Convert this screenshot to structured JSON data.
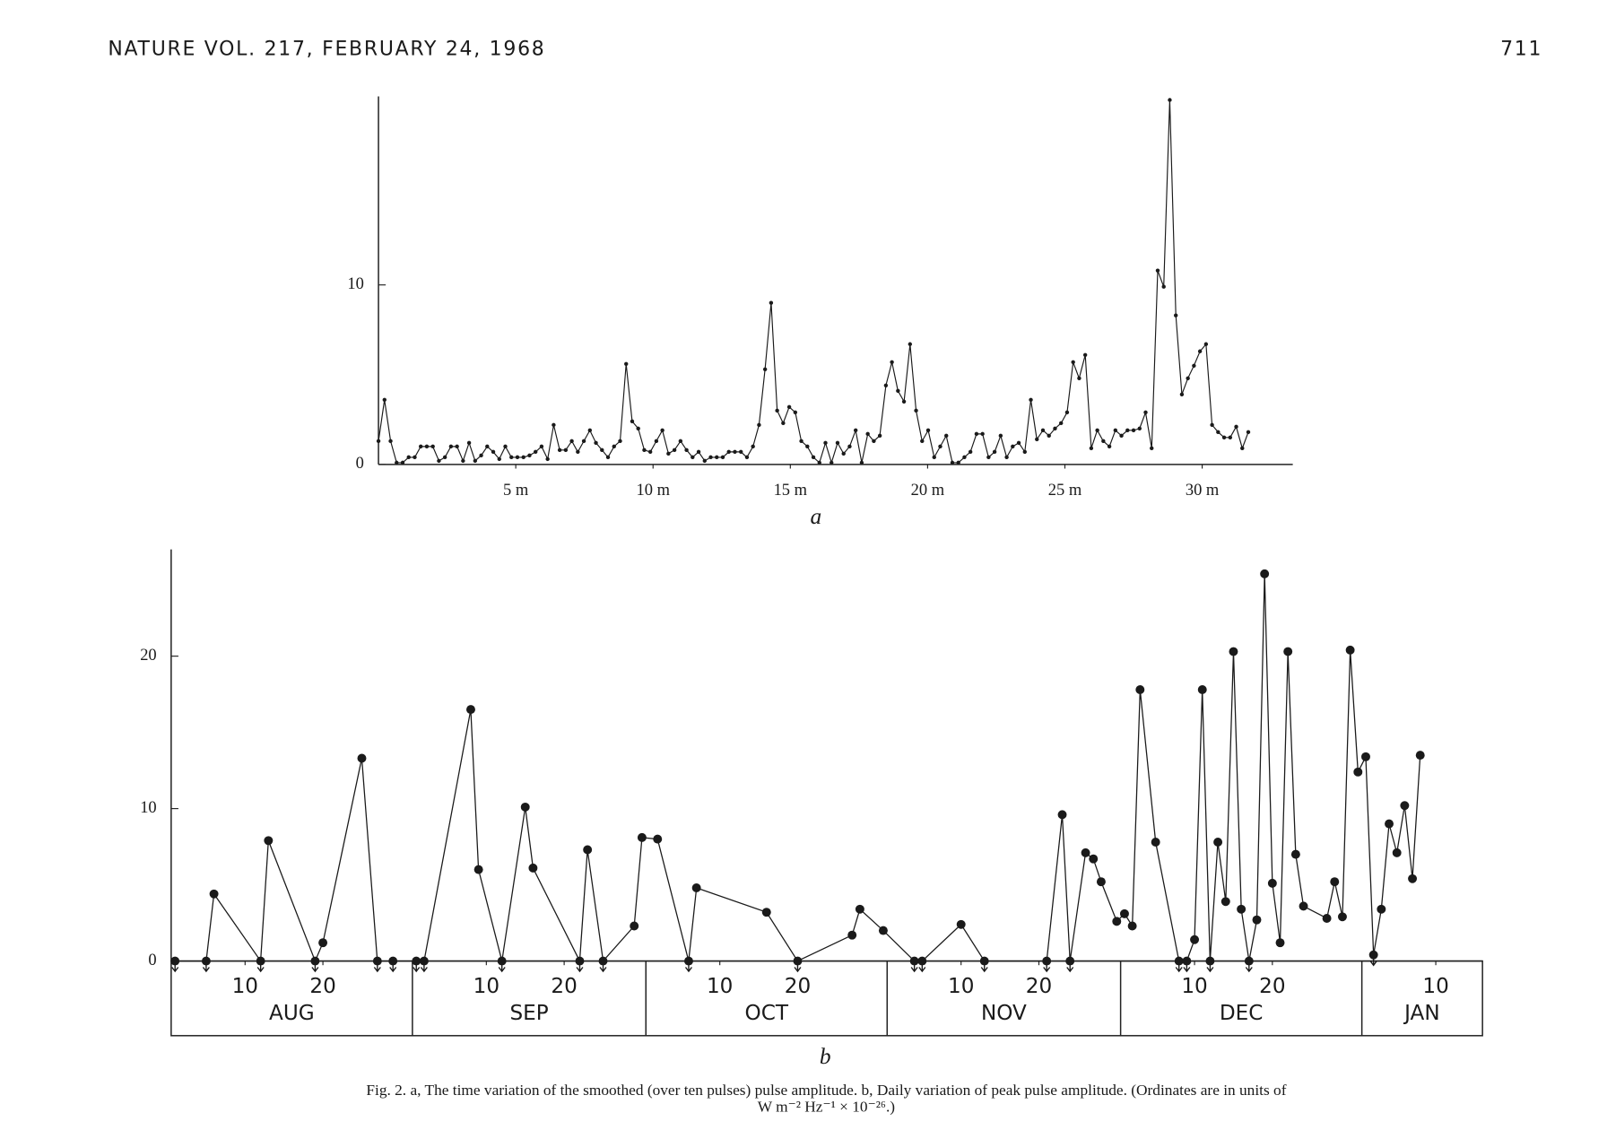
{
  "header": {
    "journal": "NATURE VOL. 217, FEBRUARY 24, 1968",
    "page": "711"
  },
  "chart_data": [
    {
      "type": "line",
      "label": "a",
      "color": "#1a1a1a",
      "x": [
        0,
        0.22,
        0.44,
        0.66,
        0.88,
        1.1,
        1.32,
        1.54,
        1.76,
        1.98,
        2.2,
        2.42,
        2.64,
        2.86,
        3.08,
        3.3,
        3.52,
        3.74,
        3.96,
        4.18,
        4.4,
        4.62,
        4.84,
        5.06,
        5.28,
        5.5,
        5.72,
        5.94,
        6.16,
        6.38,
        6.6,
        6.82,
        7.04,
        7.26,
        7.48,
        7.7,
        7.92,
        8.14,
        8.36,
        8.58,
        8.8,
        9.02,
        9.24,
        9.46,
        9.68,
        9.9,
        10.12,
        10.34,
        10.56,
        10.78,
        11,
        11.22,
        11.44,
        11.66,
        11.88,
        12.1,
        12.32,
        12.54,
        12.76,
        12.98,
        13.2,
        13.42,
        13.64,
        13.86,
        14.08,
        14.3,
        14.52,
        14.74,
        14.96,
        15.18,
        15.4,
        15.62,
        15.84,
        16.06,
        16.28,
        16.5,
        16.72,
        16.94,
        17.16,
        17.38,
        17.6,
        17.82,
        18.04,
        18.26,
        18.48,
        18.7,
        18.92,
        19.14,
        19.36,
        19.58,
        19.8,
        20.02,
        20.24,
        20.46,
        20.68,
        20.9,
        21.12,
        21.34,
        21.56,
        21.78,
        22,
        22.22,
        22.44,
        22.66,
        22.88,
        23.1,
        23.32,
        23.54,
        23.76,
        23.98,
        24.2,
        24.42,
        24.64,
        24.86,
        25.08,
        25.3,
        25.52,
        25.74,
        25.96,
        26.18,
        26.4,
        26.62,
        26.84,
        27.06,
        27.28,
        27.5,
        27.72,
        27.94,
        28.16,
        28.38,
        28.6,
        28.82,
        29.04,
        29.26,
        29.48,
        29.7,
        29.92,
        30.14,
        30.36,
        30.58,
        30.8,
        31.02,
        31.24,
        31.46,
        31.68
      ],
      "values": [
        1.3,
        3.6,
        1.3,
        0.1,
        0.1,
        0.4,
        0.4,
        1.0,
        1.0,
        1.0,
        0.2,
        0.4,
        1.0,
        1.0,
        0.2,
        1.2,
        0.2,
        0.5,
        1.0,
        0.7,
        0.3,
        1.0,
        0.4,
        0.4,
        0.4,
        0.5,
        0.7,
        1.0,
        0.3,
        2.2,
        0.8,
        0.8,
        1.3,
        0.7,
        1.3,
        1.9,
        1.2,
        0.8,
        0.4,
        1.0,
        1.3,
        5.6,
        2.4,
        2.0,
        0.8,
        0.7,
        1.3,
        1.9,
        0.6,
        0.8,
        1.3,
        0.8,
        0.4,
        0.7,
        0.2,
        0.4,
        0.4,
        0.4,
        0.7,
        0.7,
        0.7,
        0.4,
        1.0,
        2.2,
        5.3,
        9.0,
        3.0,
        2.3,
        3.2,
        2.9,
        1.3,
        1.0,
        0.4,
        0.1,
        1.2,
        0.1,
        1.2,
        0.6,
        1.0,
        1.9,
        0.1,
        1.7,
        1.3,
        1.6,
        4.4,
        5.7,
        4.1,
        3.5,
        6.7,
        3.0,
        1.3,
        1.9,
        0.4,
        1.0,
        1.6,
        0.1,
        0.1,
        0.4,
        0.7,
        1.7,
        1.7,
        0.4,
        0.7,
        1.6,
        0.4,
        1.0,
        1.2,
        0.7,
        3.6,
        1.4,
        1.9,
        1.6,
        2.0,
        2.3,
        2.9,
        5.7,
        4.8,
        6.1,
        0.9,
        1.9,
        1.3,
        1.0,
        1.9,
        1.6,
        1.9,
        1.9,
        2.0,
        2.9,
        0.9,
        10.8,
        9.9,
        20.3,
        8.3,
        3.9,
        4.8,
        5.5,
        6.3,
        6.7,
        2.2,
        1.8,
        1.5,
        1.5,
        2.1,
        0.9,
        1.8
      ],
      "xlim": [
        0,
        33.3
      ],
      "ylim": [
        0,
        20.5
      ],
      "xticks": [
        {
          "value": 5,
          "label": "5 m"
        },
        {
          "value": 10,
          "label": "10 m"
        },
        {
          "value": 15,
          "label": "15 m"
        },
        {
          "value": 20,
          "label": "20 m"
        },
        {
          "value": 25,
          "label": "25 m"
        },
        {
          "value": 30,
          "label": "30 m"
        }
      ],
      "yticks": [
        0,
        10
      ]
    },
    {
      "type": "line",
      "label": "b",
      "color": "#1a1a1a",
      "x": [
        1,
        5,
        6,
        12,
        13,
        19,
        20,
        25,
        27,
        29,
        32,
        33,
        39,
        40,
        43,
        46,
        47,
        53,
        54,
        56,
        60,
        61,
        63,
        67,
        68,
        77,
        81,
        88,
        89,
        92,
        96,
        97,
        102,
        105,
        113,
        115,
        116,
        118,
        119,
        120,
        122,
        123,
        124,
        125,
        127,
        130,
        131,
        132,
        133,
        134,
        135,
        136,
        137,
        138,
        139,
        140,
        141,
        142,
        143,
        144,
        145,
        146,
        149,
        150,
        151,
        152,
        153,
        154,
        155,
        156,
        157,
        158,
        159,
        160,
        161
      ],
      "values": [
        0,
        0,
        4.4,
        0,
        7.9,
        0,
        1.2,
        13.3,
        0,
        0,
        0,
        0,
        16.5,
        6.0,
        0,
        10.1,
        6.1,
        0,
        7.3,
        0,
        2.3,
        8.1,
        8.0,
        0,
        4.8,
        3.2,
        0,
        1.7,
        3.4,
        2.0,
        0,
        0,
        2.4,
        0,
        0,
        9.6,
        0,
        7.1,
        6.7,
        5.2,
        2.6,
        3.1,
        2.3,
        17.8,
        7.8,
        0,
        0,
        1.4,
        17.8,
        0,
        7.8,
        3.9,
        20.3,
        3.4,
        0,
        2.7,
        25.4,
        5.1,
        1.2,
        20.3,
        7.0,
        3.6,
        2.8,
        5.2,
        2.9,
        20.4,
        12.4,
        13.4,
        0.4,
        3.4,
        9.0,
        7.1,
        10.2,
        5.4,
        13.5
      ],
      "xlim": [
        0.5,
        169
      ],
      "ylim": [
        0,
        27
      ],
      "xticks": [
        10,
        20,
        41,
        51,
        71,
        81,
        102,
        112,
        132,
        142,
        163
      ],
      "xtick_labels": [
        "10",
        "20",
        "10",
        "20",
        "10",
        "20",
        "10",
        "20",
        "10",
        "20",
        "10"
      ],
      "months": [
        {
          "label": "AUG",
          "start": 0.5,
          "end": 31.5
        },
        {
          "label": "SEP",
          "start": 31.5,
          "end": 61.5
        },
        {
          "label": "OCT",
          "start": 61.5,
          "end": 92.5
        },
        {
          "label": "NOV",
          "start": 92.5,
          "end": 122.5
        },
        {
          "label": "DEC",
          "start": 122.5,
          "end": 153.5
        },
        {
          "label": "JAN",
          "start": 153.5,
          "end": 169
        }
      ],
      "yticks": [
        0,
        10,
        20
      ]
    }
  ],
  "caption": [
    "Fig. 2.  a, The time variation of the smoothed (over ten pulses) pulse amplitude.   b, Daily variation of peak pulse amplitude. (Ordinates are in units of",
    "W m⁻² Hz⁻¹ × 10⁻²⁶.)"
  ]
}
